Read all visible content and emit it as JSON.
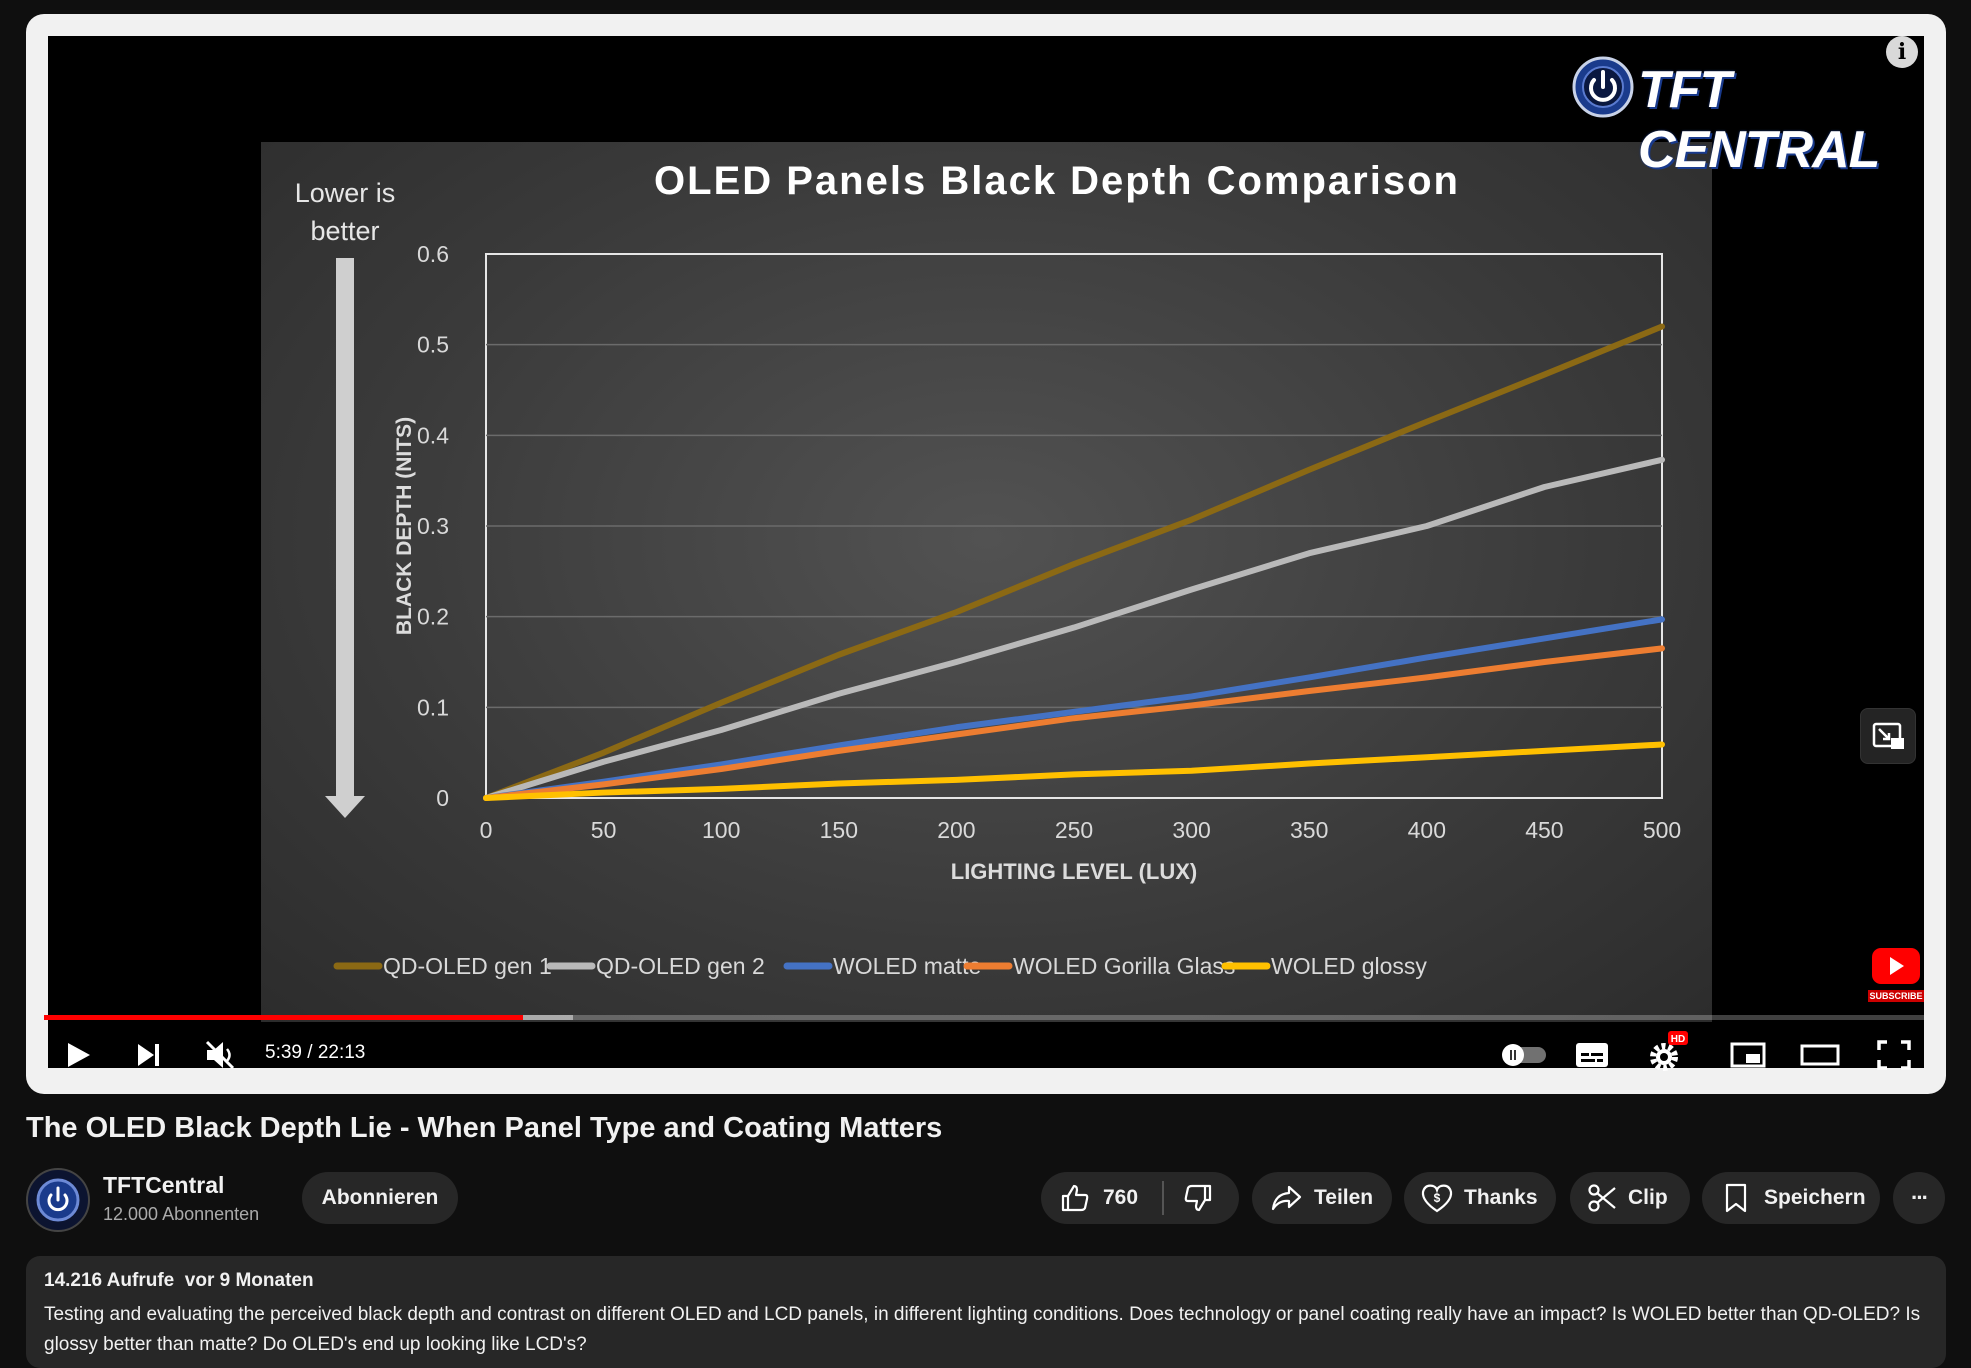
{
  "video": {
    "logo_text": "TFT CENTRAL",
    "time_current": "5:39",
    "time_total": "22:13",
    "time_display": "5:39 / 22:13",
    "progress_fraction": 0.2546,
    "buffer_fraction": 0.2815,
    "hd_badge": "HD",
    "subscribe_badge": "SUBSCRIBE",
    "controls": [
      "play-icon",
      "next-icon",
      "mute-icon",
      "autoplay-toggle",
      "subtitles-icon",
      "settings-icon",
      "miniplayer-icon",
      "theater-icon",
      "fullscreen-icon"
    ]
  },
  "chart_data": {
    "type": "line",
    "title": "OLED Panels Black Depth Comparison",
    "xlabel": "LIGHTING LEVEL (LUX)",
    "ylabel": "BLACK DEPTH (NITS)",
    "side_note": [
      "Lower is",
      "better"
    ],
    "x": [
      0,
      50,
      100,
      150,
      200,
      250,
      300,
      350,
      400,
      450,
      500
    ],
    "xlim": [
      0,
      500
    ],
    "ylim": [
      0,
      0.6
    ],
    "yticks": [
      "0",
      "0.1",
      "0.2",
      "0.3",
      "0.4",
      "0.5",
      "0.6"
    ],
    "xticks": [
      "0",
      "50",
      "100",
      "150",
      "200",
      "250",
      "300",
      "350",
      "400",
      "450",
      "500"
    ],
    "grid": true,
    "legend_position": "bottom",
    "series": [
      {
        "name": "QD-OLED gen 1",
        "color": "#8b6914",
        "values": [
          0,
          0.05,
          0.105,
          0.158,
          0.205,
          0.258,
          0.307,
          0.362,
          0.415,
          0.467,
          0.52
        ]
      },
      {
        "name": "QD-OLED gen 2",
        "color": "#b9b9b9",
        "values": [
          0,
          0.04,
          0.075,
          0.115,
          0.15,
          0.188,
          0.23,
          0.27,
          0.3,
          0.343,
          0.373
        ]
      },
      {
        "name": "WOLED matte",
        "color": "#4472c4",
        "values": [
          0,
          0.018,
          0.037,
          0.058,
          0.078,
          0.095,
          0.112,
          0.133,
          0.155,
          0.176,
          0.197
        ]
      },
      {
        "name": "WOLED Gorilla Glass",
        "color": "#ed7d31",
        "values": [
          0,
          0.015,
          0.032,
          0.052,
          0.07,
          0.088,
          0.102,
          0.118,
          0.133,
          0.15,
          0.165
        ]
      },
      {
        "name": "WOLED glossy",
        "color": "#ffc000",
        "values": [
          0,
          0.006,
          0.01,
          0.016,
          0.02,
          0.026,
          0.03,
          0.038,
          0.045,
          0.052,
          0.059
        ]
      }
    ]
  },
  "page": {
    "title": "The OLED Black Depth Lie - When Panel Type and Coating Matters",
    "channel": {
      "name": "TFTCentral",
      "subscribers": "12.000 Abonnenten"
    },
    "subscribe_label": "Abonnieren",
    "like_count": "760",
    "share_label": "Teilen",
    "thanks_label": "Thanks",
    "clip_label": "Clip",
    "save_label": "Speichern",
    "more_label": "···",
    "description": {
      "meta": "14.216 Aufrufe  vor 9 Monaten",
      "text": "Testing and evaluating the perceived black depth and contrast on different OLED and LCD panels, in different lighting conditions. Does technology or panel coating really have an impact? Is WOLED better than QD-OLED? Is glossy better than matte? Do OLED's end up looking like LCD's?"
    }
  }
}
